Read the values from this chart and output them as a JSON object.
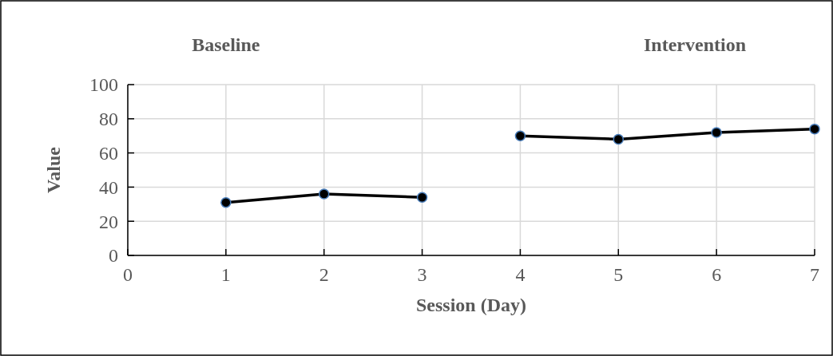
{
  "chart_data": {
    "type": "line",
    "xlabel": "Session (Day)",
    "ylabel": "Value",
    "annotations": [
      "Baseline",
      "Intervention"
    ],
    "xlim": [
      0,
      7
    ],
    "xticks": [
      0,
      1,
      2,
      3,
      4,
      5,
      6,
      7
    ],
    "ylim": [
      0,
      100
    ],
    "yticks": [
      0,
      20,
      40,
      60,
      80,
      100
    ],
    "grid": true,
    "marker": "circle",
    "line_style": "solid",
    "series": [
      {
        "color": "#000000",
        "x": [
          1,
          2,
          3
        ],
        "values": [
          31,
          36,
          34
        ]
      },
      {
        "color": "#000000",
        "x": [
          4,
          5,
          6,
          7
        ],
        "values": [
          70,
          68,
          72,
          74
        ]
      }
    ]
  }
}
